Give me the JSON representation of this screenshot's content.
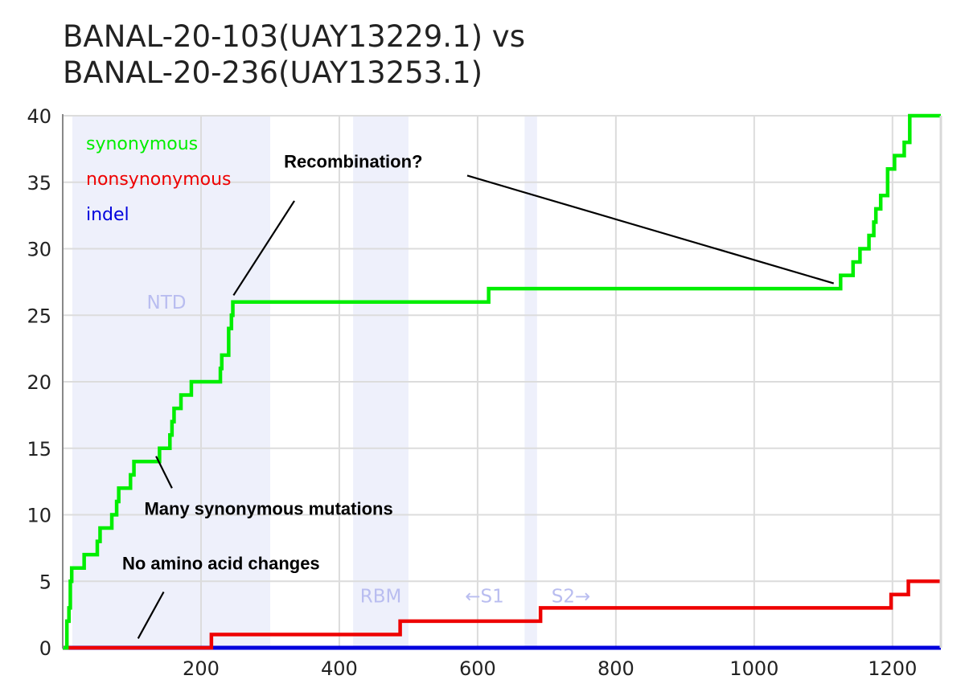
{
  "chart_data": {
    "type": "line",
    "title": [
      "BANAL-20-103(UAY13229.1) vs",
      "BANAL-20-236(UAY13253.1)"
    ],
    "xlabel": "",
    "ylabel": "",
    "xlim": [
      0,
      1270
    ],
    "ylim": [
      0,
      40
    ],
    "xticks": [
      200,
      400,
      600,
      800,
      1000,
      1200
    ],
    "yticks": [
      0,
      5,
      10,
      15,
      20,
      25,
      30,
      35,
      40
    ],
    "grid": true,
    "legend_position": "top-left",
    "regions": [
      {
        "name": "NTD",
        "x0": 14,
        "x1": 300
      },
      {
        "name": "RBM",
        "x0": 420,
        "x1": 500
      },
      {
        "name": "",
        "x0": 668,
        "x1": 686
      }
    ],
    "region_text": [
      {
        "text": "NTD",
        "x": 150,
        "y": 25.5
      },
      {
        "text": "RBM",
        "x": 460,
        "y": 3.4
      },
      {
        "text": "←S1",
        "x": 610,
        "y": 3.4
      },
      {
        "text": "S2→",
        "x": 735,
        "y": 3.4
      }
    ],
    "series": [
      {
        "name": "synonymous",
        "color": "#00ee00",
        "steps": [
          [
            0,
            0
          ],
          [
            6,
            2
          ],
          [
            9,
            3
          ],
          [
            11,
            5
          ],
          [
            13,
            6
          ],
          [
            27,
            6
          ],
          [
            31,
            7
          ],
          [
            47,
            7
          ],
          [
            50,
            8
          ],
          [
            54,
            9
          ],
          [
            67,
            9
          ],
          [
            71,
            10
          ],
          [
            78,
            11
          ],
          [
            81,
            12
          ],
          [
            95,
            12
          ],
          [
            98,
            13
          ],
          [
            103,
            14
          ],
          [
            136,
            14
          ],
          [
            140,
            15
          ],
          [
            151,
            15
          ],
          [
            155,
            16
          ],
          [
            158,
            17
          ],
          [
            161,
            18
          ],
          [
            167,
            18
          ],
          [
            171,
            19
          ],
          [
            180,
            19
          ],
          [
            186,
            20
          ],
          [
            226,
            20
          ],
          [
            228,
            21
          ],
          [
            230,
            22
          ],
          [
            238,
            22
          ],
          [
            240,
            24
          ],
          [
            244,
            25
          ],
          [
            246,
            26
          ],
          [
            613,
            26
          ],
          [
            616,
            27
          ],
          [
            1122,
            27
          ],
          [
            1125,
            28
          ],
          [
            1140,
            28
          ],
          [
            1143,
            29
          ],
          [
            1150,
            29
          ],
          [
            1153,
            30
          ],
          [
            1162,
            30
          ],
          [
            1166,
            31
          ],
          [
            1171,
            31
          ],
          [
            1173,
            32
          ],
          [
            1176,
            33
          ],
          [
            1181,
            33
          ],
          [
            1183,
            34
          ],
          [
            1190,
            34
          ],
          [
            1193,
            36
          ],
          [
            1201,
            36
          ],
          [
            1203,
            37
          ],
          [
            1214,
            37
          ],
          [
            1217,
            38
          ],
          [
            1222,
            38
          ],
          [
            1225,
            40
          ],
          [
            1270,
            40
          ]
        ]
      },
      {
        "name": "nonsynonymous",
        "color": "#ee0000",
        "steps": [
          [
            0,
            0
          ],
          [
            213,
            0
          ],
          [
            215,
            1
          ],
          [
            485,
            1
          ],
          [
            488,
            2
          ],
          [
            688,
            2
          ],
          [
            691,
            3
          ],
          [
            1195,
            3
          ],
          [
            1198,
            4
          ],
          [
            1220,
            4
          ],
          [
            1223,
            5
          ],
          [
            1270,
            5
          ]
        ]
      },
      {
        "name": "indel",
        "color": "#0000dd",
        "steps": [
          [
            0,
            0
          ],
          [
            1270,
            0
          ]
        ]
      }
    ],
    "annotations": [
      {
        "text": "Recombination?",
        "x": 320,
        "y": 36.1
      },
      {
        "text": "Many synonymous mutations",
        "x": 118,
        "y": 10.0
      },
      {
        "text": "No amino acid changes",
        "x": 86,
        "y": 5.9
      }
    ],
    "annotation_lines": [
      {
        "x1": 335,
        "y1": 33.6,
        "x2": 247,
        "y2": 26.5
      },
      {
        "x1": 585,
        "y1": 35.5,
        "x2": 1115,
        "y2": 27.4
      },
      {
        "x1": 158,
        "y1": 12.0,
        "x2": 135,
        "y2": 14.4
      },
      {
        "x1": 146,
        "y1": 4.2,
        "x2": 109,
        "y2": 0.7
      }
    ]
  }
}
